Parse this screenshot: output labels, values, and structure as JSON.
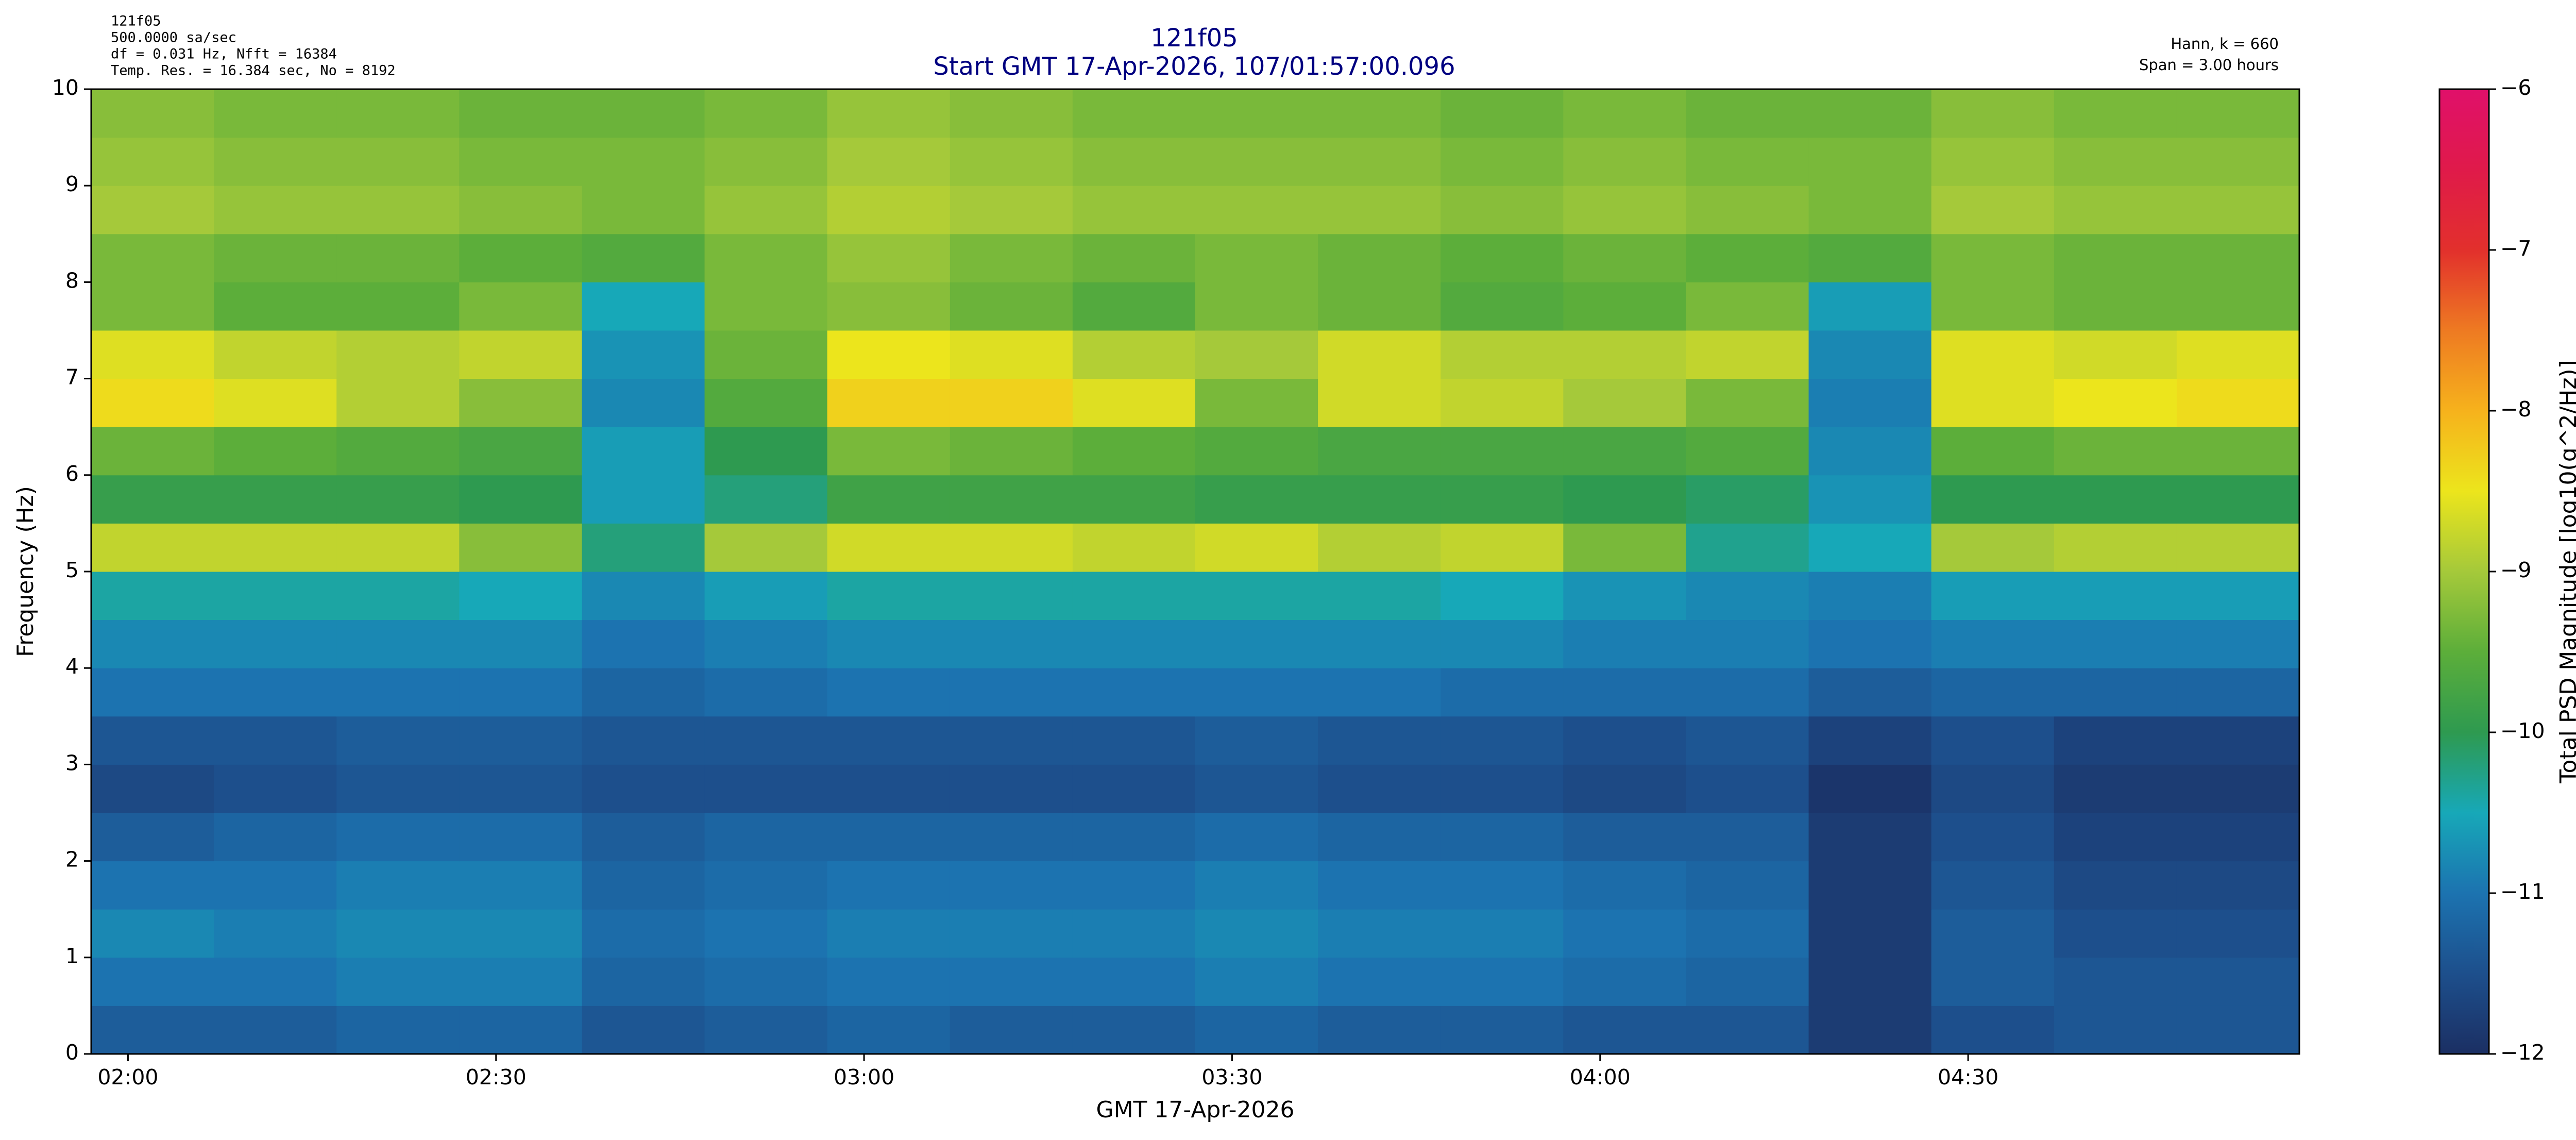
{
  "info_left": [
    "121f05",
    "500.0000 sa/sec",
    "df = 0.031 Hz,  Nfft = 16384",
    "Temp. Res. = 16.384 sec, No = 8192"
  ],
  "info_right": [
    "Hann, k = 660",
    "Span = 3.00 hours"
  ],
  "chart_data": {
    "type": "heatmap",
    "title": "121f05",
    "subtitle": "Start GMT 17-Apr-2026, 107/01:57:00.096",
    "x_label": "GMT 17-Apr-2026",
    "y_label": "Frequency (Hz)",
    "colorbar_label": "Total PSD Magnitude [log10(g^2/Hz)]",
    "x": [
      "01:57",
      "02:07",
      "02:17",
      "02:27",
      "02:37",
      "02:47",
      "02:57",
      "03:07",
      "03:17",
      "03:27",
      "03:37",
      "03:47",
      "03:57",
      "04:07",
      "04:17",
      "04:27",
      "04:37",
      "04:47"
    ],
    "xlim": [
      "01:57",
      "04:57"
    ],
    "xticks": [
      "02:00",
      "02:30",
      "03:00",
      "03:30",
      "04:00",
      "04:30"
    ],
    "ybins": [
      0,
      0.5,
      1,
      1.5,
      2,
      2.5,
      3,
      3.5,
      4,
      4.5,
      5,
      5.5,
      6,
      6.5,
      7,
      7.5,
      8,
      8.5,
      9,
      9.5,
      10
    ],
    "ylim": [
      0,
      10
    ],
    "yticks": [
      0,
      1,
      2,
      3,
      4,
      5,
      6,
      7,
      8,
      9,
      10
    ],
    "clim": [
      -12,
      -6
    ],
    "cticks": [
      {
        "value": -12,
        "label": "−12"
      },
      {
        "value": -11,
        "label": "−11"
      },
      {
        "value": -10,
        "label": "−10"
      },
      {
        "value": -9,
        "label": "−9"
      },
      {
        "value": -8,
        "label": "−8"
      },
      {
        "value": -7,
        "label": "−7"
      },
      {
        "value": -6,
        "label": "−6"
      }
    ],
    "colormap": [
      "#1b2f63",
      "#1d4f8c",
      "#1c73b0",
      "#17a8b8",
      "#2e9a50",
      "#5cae3a",
      "#a5c93a",
      "#ece51c",
      "#f6b21c",
      "#ee7a22",
      "#e2302c",
      "#e01a4a",
      "#e0106a"
    ],
    "z": [
      [
        -11.3,
        -11.3,
        -11.2,
        -11.2,
        -11.4,
        -11.3,
        -11.2,
        -11.3,
        -11.3,
        -11.2,
        -11.3,
        -11.3,
        -11.4,
        -11.4,
        -11.8,
        -11.5,
        -11.4,
        -11.4
      ],
      [
        -11.0,
        -11.0,
        -10.9,
        -10.9,
        -11.2,
        -11.1,
        -11.0,
        -11.0,
        -11.0,
        -10.9,
        -11.0,
        -11.0,
        -11.1,
        -11.2,
        -11.8,
        -11.3,
        -11.4,
        -11.4
      ],
      [
        -10.8,
        -10.9,
        -10.8,
        -10.8,
        -11.1,
        -11.0,
        -10.9,
        -10.9,
        -10.9,
        -10.8,
        -10.9,
        -10.9,
        -11.0,
        -11.1,
        -11.8,
        -11.3,
        -11.5,
        -11.5
      ],
      [
        -11.0,
        -11.0,
        -10.9,
        -10.9,
        -11.2,
        -11.1,
        -11.0,
        -11.0,
        -11.0,
        -10.9,
        -11.0,
        -11.0,
        -11.1,
        -11.2,
        -11.8,
        -11.4,
        -11.6,
        -11.6
      ],
      [
        -11.3,
        -11.2,
        -11.1,
        -11.1,
        -11.3,
        -11.2,
        -11.2,
        -11.2,
        -11.2,
        -11.1,
        -11.2,
        -11.2,
        -11.3,
        -11.3,
        -11.8,
        -11.5,
        -11.7,
        -11.7
      ],
      [
        -11.6,
        -11.5,
        -11.4,
        -11.4,
        -11.5,
        -11.5,
        -11.5,
        -11.5,
        -11.5,
        -11.4,
        -11.5,
        -11.5,
        -11.6,
        -11.5,
        -11.9,
        -11.6,
        -11.8,
        -11.8
      ],
      [
        -11.4,
        -11.4,
        -11.3,
        -11.3,
        -11.4,
        -11.4,
        -11.4,
        -11.4,
        -11.4,
        -11.3,
        -11.4,
        -11.4,
        -11.5,
        -11.4,
        -11.7,
        -11.5,
        -11.7,
        -11.7
      ],
      [
        -11.0,
        -11.0,
        -11.0,
        -11.0,
        -11.2,
        -11.1,
        -11.0,
        -11.0,
        -11.0,
        -11.0,
        -11.0,
        -11.1,
        -11.1,
        -11.1,
        -11.3,
        -11.2,
        -11.2,
        -11.2
      ],
      [
        -10.8,
        -10.8,
        -10.8,
        -10.8,
        -11.0,
        -10.9,
        -10.8,
        -10.8,
        -10.8,
        -10.8,
        -10.8,
        -10.8,
        -10.9,
        -10.9,
        -11.0,
        -10.9,
        -10.9,
        -10.9
      ],
      [
        -10.4,
        -10.4,
        -10.4,
        -10.5,
        -10.8,
        -10.6,
        -10.4,
        -10.4,
        -10.4,
        -10.4,
        -10.4,
        -10.5,
        -10.7,
        -10.8,
        -10.9,
        -10.6,
        -10.6,
        -10.6
      ],
      [
        -8.8,
        -8.8,
        -8.8,
        -9.2,
        -10.2,
        -9.0,
        -8.7,
        -8.7,
        -8.8,
        -8.7,
        -8.9,
        -8.8,
        -9.3,
        -10.3,
        -10.5,
        -9.0,
        -8.9,
        -8.9
      ],
      [
        -9.9,
        -9.9,
        -9.9,
        -10.0,
        -10.6,
        -10.2,
        -9.8,
        -9.8,
        -9.8,
        -9.9,
        -9.9,
        -9.9,
        -10.0,
        -10.1,
        -10.7,
        -10.0,
        -10.0,
        -10.0
      ],
      [
        -9.4,
        -9.5,
        -9.6,
        -9.7,
        -10.6,
        -10.0,
        -9.3,
        -9.4,
        -9.5,
        -9.6,
        -9.7,
        -9.7,
        -9.7,
        -9.6,
        -10.8,
        -9.5,
        -9.4,
        -9.4
      ],
      [
        -8.4,
        -8.6,
        -8.9,
        -9.2,
        -10.8,
        -9.6,
        -8.3,
        -8.3,
        -8.6,
        -9.3,
        -8.7,
        -8.8,
        -9.0,
        -9.3,
        -10.9,
        -8.6,
        -8.5,
        -8.4
      ],
      [
        -8.6,
        -8.8,
        -8.9,
        -8.8,
        -10.7,
        -9.4,
        -8.5,
        -8.6,
        -8.9,
        -9.0,
        -8.7,
        -8.9,
        -8.9,
        -8.8,
        -10.8,
        -8.6,
        -8.7,
        -8.6
      ],
      [
        -9.3,
        -9.5,
        -9.5,
        -9.3,
        -10.5,
        -9.3,
        -9.2,
        -9.4,
        -9.6,
        -9.3,
        -9.4,
        -9.6,
        -9.5,
        -9.3,
        -10.6,
        -9.3,
        -9.4,
        -9.4
      ],
      [
        -9.3,
        -9.4,
        -9.4,
        -9.5,
        -9.6,
        -9.3,
        -9.1,
        -9.3,
        -9.4,
        -9.3,
        -9.4,
        -9.5,
        -9.4,
        -9.5,
        -9.6,
        -9.3,
        -9.4,
        -9.4
      ],
      [
        -9.0,
        -9.1,
        -9.1,
        -9.2,
        -9.3,
        -9.1,
        -8.9,
        -9.0,
        -9.1,
        -9.1,
        -9.1,
        -9.2,
        -9.1,
        -9.2,
        -9.3,
        -9.0,
        -9.1,
        -9.1
      ],
      [
        -9.1,
        -9.2,
        -9.2,
        -9.3,
        -9.3,
        -9.2,
        -9.0,
        -9.1,
        -9.2,
        -9.2,
        -9.2,
        -9.3,
        -9.2,
        -9.3,
        -9.3,
        -9.1,
        -9.2,
        -9.2
      ],
      [
        -9.2,
        -9.3,
        -9.3,
        -9.4,
        -9.4,
        -9.3,
        -9.1,
        -9.2,
        -9.3,
        -9.3,
        -9.3,
        -9.4,
        -9.3,
        -9.4,
        -9.4,
        -9.2,
        -9.3,
        -9.3
      ]
    ]
  }
}
